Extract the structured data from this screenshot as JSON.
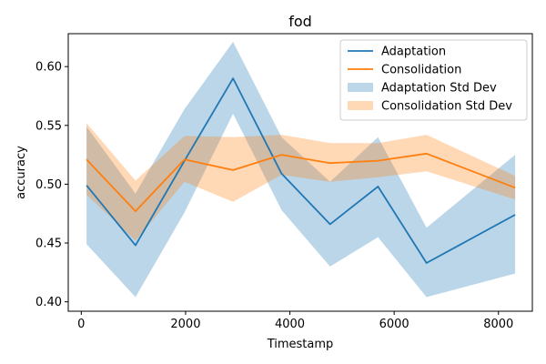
{
  "chart_data": {
    "type": "line",
    "title": "fod",
    "xlabel": "Timestamp",
    "ylabel": "accuracy",
    "xlim": [
      -250,
      8650
    ],
    "ylim": [
      0.392,
      0.628
    ],
    "x_ticks": [
      0,
      2000,
      4000,
      6000,
      8000
    ],
    "x_tick_labels": [
      "0",
      "2000",
      "4000",
      "6000",
      "8000"
    ],
    "y_ticks": [
      0.4,
      0.45,
      0.5,
      0.55,
      0.6
    ],
    "y_tick_labels": [
      "0.40",
      "0.45",
      "0.50",
      "0.55",
      "0.60"
    ],
    "grid": false,
    "legend_position": "top-right",
    "x": [
      100,
      1040,
      1980,
      2910,
      3840,
      4770,
      5690,
      6620,
      8320
    ],
    "series": [
      {
        "name": "Adaptation",
        "color": "#1f77b4",
        "values": [
          0.499,
          0.448,
          0.52,
          0.59,
          0.509,
          0.466,
          0.498,
          0.433,
          0.474
        ],
        "band_lower": [
          0.449,
          0.404,
          0.476,
          0.56,
          0.478,
          0.43,
          0.455,
          0.404,
          0.424
        ],
        "band_upper": [
          0.549,
          0.492,
          0.564,
          0.621,
          0.54,
          0.502,
          0.54,
          0.463,
          0.525
        ]
      },
      {
        "name": "Consolidation",
        "color": "#ff7f0e",
        "values": [
          0.521,
          0.477,
          0.521,
          0.512,
          0.525,
          0.518,
          0.52,
          0.526,
          0.497
        ],
        "band_lower": [
          0.491,
          0.452,
          0.502,
          0.485,
          0.508,
          0.502,
          0.506,
          0.511,
          0.487
        ],
        "band_upper": [
          0.552,
          0.503,
          0.541,
          0.54,
          0.542,
          0.535,
          0.535,
          0.542,
          0.507
        ]
      }
    ],
    "legend": [
      {
        "label": "Adaptation",
        "kind": "line",
        "color": "#1f77b4"
      },
      {
        "label": "Consolidation",
        "kind": "line",
        "color": "#ff7f0e"
      },
      {
        "label": "Adaptation Std Dev",
        "kind": "band",
        "color": "#1f77b4"
      },
      {
        "label": "Consolidation Std Dev",
        "kind": "band",
        "color": "#ff7f0e"
      }
    ]
  }
}
